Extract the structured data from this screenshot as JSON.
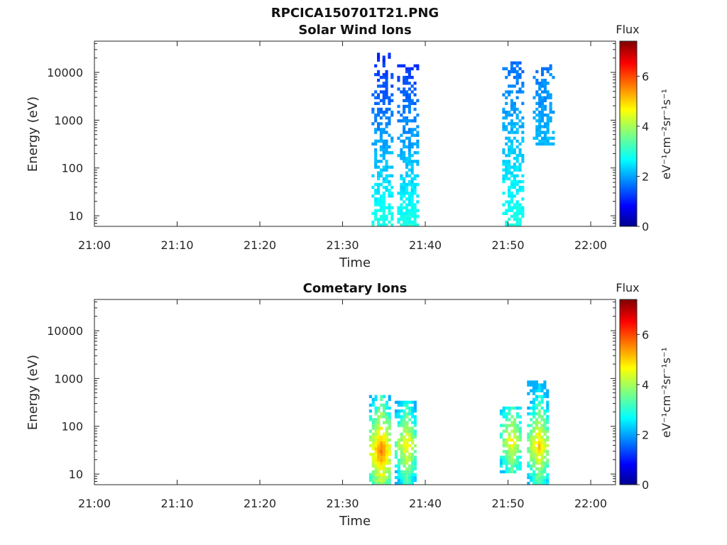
{
  "file_title": "RPCICA150701T21.PNG",
  "colorbar": {
    "title": "Flux",
    "unit_label": "eV⁻¹cm⁻²sr⁻¹s⁻¹",
    "ticks": [
      "0",
      "2",
      "4",
      "6"
    ],
    "range": [
      0,
      7.4
    ],
    "colormap": "jet"
  },
  "chart_data": [
    {
      "type": "heatmap",
      "title": "Solar Wind Ions",
      "xlabel": "Time",
      "ylabel": "Energy (eV)",
      "x_tick_labels": [
        "21:00",
        "21:10",
        "21:20",
        "21:30",
        "21:40",
        "21:50",
        "22:00"
      ],
      "x_range_minutes": [
        0,
        63
      ],
      "y_tick_labels": [
        "10",
        "100",
        "1000",
        "10000"
      ],
      "y_scale": "log",
      "y_range": [
        6,
        45000
      ],
      "bursts": [
        {
          "time": "21:34.7",
          "e_low": 6,
          "e_high": 25000,
          "flux_low": 3.0,
          "flux_high": 1.2
        },
        {
          "time": "21:37.8",
          "e_low": 6,
          "e_high": 15000,
          "flux_low": 3.0,
          "flux_high": 1.3
        },
        {
          "time": "21:50.5",
          "e_low": 6,
          "e_high": 18000,
          "flux_low": 3.0,
          "flux_high": 1.7
        },
        {
          "time": "21:54.2",
          "e_low": 300,
          "e_high": 15000,
          "flux_low": 2.3,
          "flux_high": 1.8
        }
      ]
    },
    {
      "type": "heatmap",
      "title": "Cometary Ions",
      "xlabel": "Time",
      "ylabel": "Energy (eV)",
      "x_tick_labels": [
        "21:00",
        "21:10",
        "21:20",
        "21:30",
        "21:40",
        "21:50",
        "22:00"
      ],
      "x_range_minutes": [
        0,
        63
      ],
      "y_tick_labels": [
        "10",
        "100",
        "1000",
        "10000"
      ],
      "y_scale": "log",
      "y_range": [
        6,
        45000
      ],
      "bursts": [
        {
          "time": "21:34.5",
          "e_low": 6,
          "e_high": 450,
          "flux_peak": 5.5,
          "e_peak": 30
        },
        {
          "time": "21:37.6",
          "e_low": 6,
          "e_high": 350,
          "flux_peak": 4.8,
          "e_peak": 40
        },
        {
          "time": "21:50.3",
          "e_low": 10,
          "e_high": 250,
          "flux_peak": 4.7,
          "e_peak": 50
        },
        {
          "time": "21:53.6",
          "e_low": 6,
          "e_high": 950,
          "flux_peak": 5.0,
          "e_peak": 40
        }
      ]
    }
  ]
}
